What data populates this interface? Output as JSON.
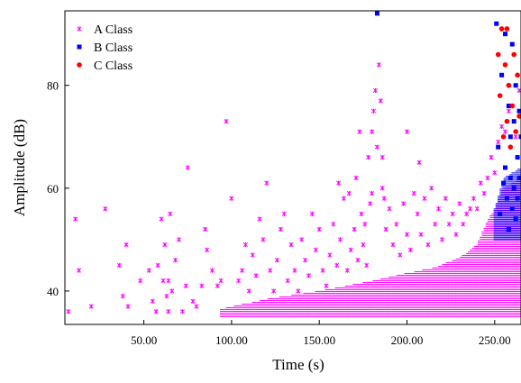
{
  "chart_data": {
    "type": "scatter",
    "title": "",
    "xlabel": "Time (s)",
    "ylabel": "Amplitude (dB)",
    "xlim": [
      5,
      265
    ],
    "ylim": [
      33.5,
      94.5
    ],
    "x_ticks": [
      50,
      100,
      150,
      200,
      250
    ],
    "x_tick_labels": [
      "50.00",
      "100.00",
      "150.00",
      "200.00",
      "250.00"
    ],
    "y_ticks": [
      40,
      60,
      80
    ],
    "y_tick_labels": [
      "40",
      "60",
      "80"
    ],
    "grid": false,
    "legend_position": "top-left",
    "series": [
      {
        "name": "A Class",
        "color": "#ff00ff",
        "marker": "star",
        "points": [
          [
            7,
            36
          ],
          [
            11,
            54
          ],
          [
            13,
            44
          ],
          [
            20,
            37
          ],
          [
            28,
            56
          ],
          [
            36,
            45
          ],
          [
            38,
            39
          ],
          [
            41,
            37
          ],
          [
            40,
            49
          ],
          [
            48,
            42
          ],
          [
            53,
            44
          ],
          [
            55,
            38
          ],
          [
            57,
            36
          ],
          [
            58,
            45
          ],
          [
            60,
            54
          ],
          [
            61,
            42
          ],
          [
            62,
            49
          ],
          [
            63,
            39
          ],
          [
            64,
            36
          ],
          [
            64,
            42
          ],
          [
            65,
            55
          ],
          [
            66,
            40
          ],
          [
            68,
            46
          ],
          [
            70,
            50
          ],
          [
            72,
            36
          ],
          [
            74,
            41
          ],
          [
            75,
            64
          ],
          [
            78,
            38
          ],
          [
            80,
            37
          ],
          [
            83,
            41
          ],
          [
            85,
            52
          ],
          [
            86,
            48
          ],
          [
            89,
            44
          ],
          [
            92,
            41
          ],
          [
            94,
            42
          ],
          [
            97,
            73
          ],
          [
            100,
            58
          ],
          [
            104,
            42
          ],
          [
            106,
            44
          ],
          [
            108,
            49
          ],
          [
            110,
            40
          ],
          [
            112,
            47
          ],
          [
            114,
            43
          ],
          [
            116,
            54
          ],
          [
            118,
            50
          ],
          [
            120,
            61
          ],
          [
            122,
            44
          ],
          [
            124,
            40
          ],
          [
            126,
            46
          ],
          [
            128,
            52
          ],
          [
            130,
            55
          ],
          [
            132,
            42
          ],
          [
            134,
            49
          ],
          [
            136,
            44
          ],
          [
            138,
            40
          ],
          [
            140,
            50
          ],
          [
            142,
            46
          ],
          [
            144,
            43
          ],
          [
            146,
            55
          ],
          [
            148,
            48
          ],
          [
            150,
            52
          ],
          [
            152,
            44
          ],
          [
            154,
            41
          ],
          [
            156,
            47
          ],
          [
            158,
            53
          ],
          [
            160,
            45
          ],
          [
            161,
            61
          ],
          [
            162,
            50
          ],
          [
            164,
            58
          ],
          [
            166,
            44
          ],
          [
            167,
            59
          ],
          [
            168,
            48
          ],
          [
            170,
            52
          ],
          [
            171,
            62
          ],
          [
            172,
            46
          ],
          [
            173,
            71
          ],
          [
            174,
            55
          ],
          [
            175,
            49
          ],
          [
            176,
            53
          ],
          [
            177,
            45
          ],
          [
            178,
            66
          ],
          [
            179,
            57
          ],
          [
            180,
            71
          ],
          [
            180,
            59
          ],
          [
            181,
            75
          ],
          [
            182,
            79
          ],
          [
            183,
            68
          ],
          [
            184,
            84
          ],
          [
            185,
            77
          ],
          [
            186,
            66
          ],
          [
            186,
            60
          ],
          [
            187,
            58
          ],
          [
            188,
            52
          ],
          [
            190,
            56
          ],
          [
            192,
            49
          ],
          [
            194,
            53
          ],
          [
            196,
            47
          ],
          [
            198,
            57
          ],
          [
            200,
            71
          ],
          [
            200,
            51
          ],
          [
            202,
            48
          ],
          [
            204,
            59
          ],
          [
            206,
            55
          ],
          [
            207,
            65
          ],
          [
            208,
            51
          ],
          [
            210,
            58
          ],
          [
            212,
            49
          ],
          [
            214,
            60
          ],
          [
            216,
            53
          ],
          [
            218,
            56
          ],
          [
            220,
            50
          ],
          [
            222,
            58
          ],
          [
            224,
            53
          ],
          [
            226,
            55
          ],
          [
            228,
            51
          ],
          [
            230,
            57
          ],
          [
            232,
            53
          ],
          [
            234,
            55
          ],
          [
            236,
            56
          ],
          [
            238,
            58
          ],
          [
            240,
            56
          ],
          [
            242,
            61
          ],
          [
            244,
            59
          ],
          [
            246,
            62
          ],
          [
            248,
            66
          ],
          [
            250,
            63
          ],
          [
            252,
            69
          ],
          [
            254,
            72
          ],
          [
            256,
            71
          ],
          [
            258,
            75
          ],
          [
            260,
            76
          ],
          [
            262,
            70
          ],
          [
            264,
            79
          ]
        ],
        "dense_band": {
          "x_range": [
            94,
            265
          ],
          "y_floor": 35,
          "ceiling_knots": [
            [
              94,
              36.5
            ],
            [
              120,
              38.5
            ],
            [
              150,
              40
            ],
            [
              180,
              42
            ],
            [
              200,
              43.5
            ],
            [
              215,
              44.5
            ],
            [
              230,
              46.5
            ],
            [
              240,
              49
            ],
            [
              245,
              53
            ],
            [
              250,
              56
            ],
            [
              255,
              60
            ],
            [
              265,
              62
            ]
          ]
        }
      },
      {
        "name": "B Class",
        "color": "#0000ff",
        "marker": "square",
        "points": [
          [
            183,
            94
          ],
          [
            251,
            92
          ],
          [
            252,
            68
          ],
          [
            253,
            55
          ],
          [
            254,
            82
          ],
          [
            255,
            61
          ],
          [
            256,
            90
          ],
          [
            256,
            64
          ],
          [
            257,
            58
          ],
          [
            258,
            76
          ],
          [
            258,
            52
          ],
          [
            259,
            70
          ],
          [
            259,
            62
          ],
          [
            260,
            88
          ],
          [
            260,
            56
          ],
          [
            261,
            73
          ],
          [
            261,
            60
          ],
          [
            262,
            80
          ],
          [
            262,
            54
          ],
          [
            263,
            66
          ],
          [
            263,
            58
          ],
          [
            264,
            75
          ],
          [
            264,
            62
          ],
          [
            265,
            70
          ]
        ],
        "dense_band": {
          "x_range": [
            250,
            265
          ],
          "y_floor": 50,
          "ceiling_knots": [
            [
              250,
              56
            ],
            [
              255,
              62
            ],
            [
              265,
              64
            ]
          ]
        }
      },
      {
        "name": "C Class",
        "color": "#ff0000",
        "marker": "circle",
        "points": [
          [
            252,
            86
          ],
          [
            253,
            78
          ],
          [
            254,
            91
          ],
          [
            255,
            70
          ],
          [
            256,
            84
          ],
          [
            257,
            73
          ],
          [
            257,
            91
          ],
          [
            258,
            80
          ],
          [
            259,
            68
          ],
          [
            260,
            76
          ],
          [
            261,
            86
          ],
          [
            262,
            71
          ],
          [
            263,
            82
          ],
          [
            264,
            74
          ]
        ]
      }
    ]
  }
}
